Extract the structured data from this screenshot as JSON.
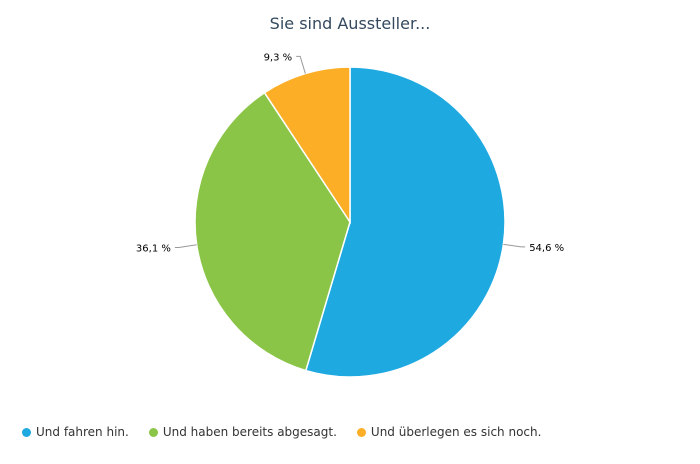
{
  "chart_data": {
    "type": "pie",
    "title": "Sie sind Aussteller...",
    "categories": [
      "Und fahren hin.",
      "Und haben bereits abgesagt.",
      "Und überlegen es sich noch."
    ],
    "values": [
      54.6,
      36.1,
      9.3
    ],
    "value_labels": [
      "54,6 %",
      "36,1 %",
      "9,3 %"
    ],
    "colors": [
      "#1fa9e1",
      "#8bc547",
      "#fbae26"
    ],
    "start_angle": "12 o'clock",
    "direction": "clockwise",
    "legend_position": "bottom-left"
  }
}
